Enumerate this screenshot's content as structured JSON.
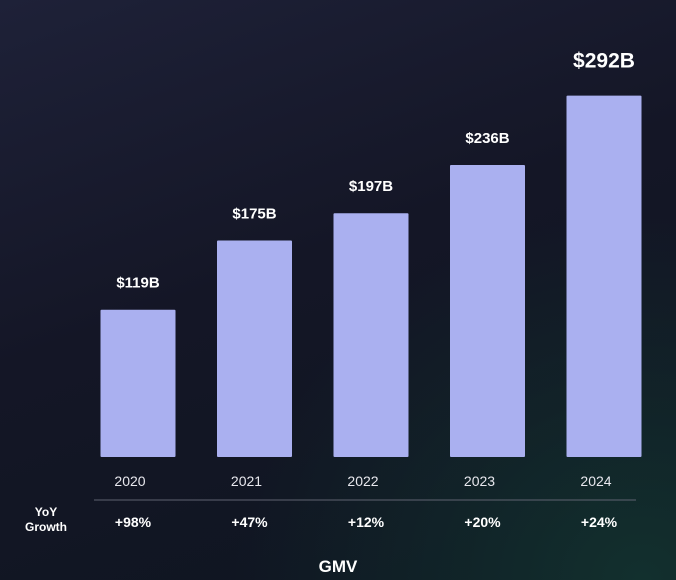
{
  "chart_data": {
    "type": "bar",
    "categories": [
      "2020",
      "2021",
      "2022",
      "2023",
      "2024"
    ],
    "values": [
      119,
      175,
      197,
      236,
      292
    ],
    "value_labels": [
      "$119B",
      "$175B",
      "$197B",
      "$236B",
      "$292B"
    ],
    "title": "GMV",
    "ylim": [
      0,
      320
    ],
    "grid": false,
    "growth_row": {
      "label_line1": "YoY",
      "label_line2": "Growth",
      "values": [
        "+98%",
        "+47%",
        "+12%",
        "+20%",
        "+24%"
      ]
    },
    "colors": {
      "bar": "#aab0f0",
      "background": "#141626",
      "text": "#ffffff"
    }
  }
}
